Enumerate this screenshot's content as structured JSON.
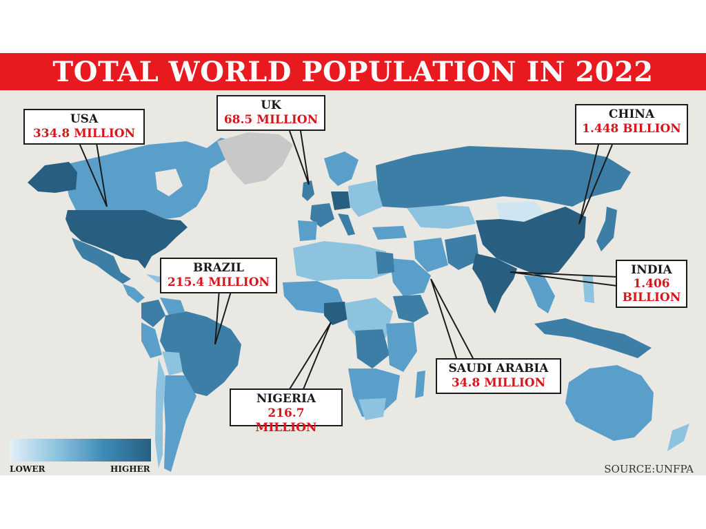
{
  "title": "TOTAL WORLD POPULATION IN 2022",
  "callouts": {
    "usa": {
      "country": "USA",
      "value": "334.8  MILLION"
    },
    "uk": {
      "country": "UK",
      "value": "68.5 MILLION"
    },
    "china": {
      "country": "CHINA",
      "value": "1.448 BILLION"
    },
    "brazil": {
      "country": "BRAZIL",
      "value": "215.4 MILLION"
    },
    "india": {
      "country": "INDIA",
      "value_line1": "1.406",
      "value_line2": "BILLION"
    },
    "saudi": {
      "country": "SAUDI ARABIA",
      "value": "34.8 MILLION"
    },
    "nigeria": {
      "country": "NIGERIA",
      "value": "216.7 MILLION"
    }
  },
  "legend": {
    "low_label": "LOWER",
    "high_label": "HIGHER"
  },
  "source": "SOURCE:UNFPA",
  "colors": {
    "title_bar": "#e8191f",
    "value_text": "#d8151c",
    "ocean": "#e9e8e3",
    "darkest": "#285f80",
    "dark": "#3d7ea6",
    "mid": "#5a9fca",
    "light": "#8ec3df",
    "lightest": "#cfe5f2",
    "no_data": "#c8c8c8"
  }
}
